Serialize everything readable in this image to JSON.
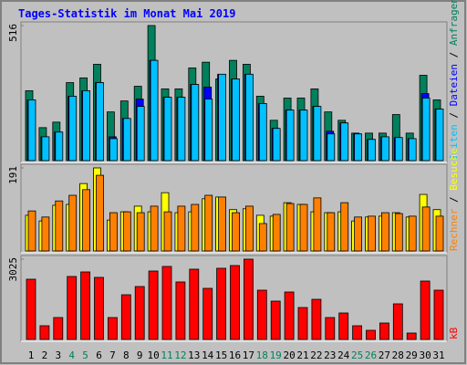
{
  "title": "Tages-Statistik im Monat Mai 2019",
  "legend_separator": "/",
  "chart_data": [
    {
      "type": "bar",
      "ylim": [
        0,
        516
      ],
      "yticks": [
        516
      ],
      "series": [
        {
          "name": "Anfragen",
          "color": "#00805c",
          "values": [
            267,
            126,
            147,
            298,
            316,
            368,
            186,
            228,
            284,
            516,
            274,
            274,
            354,
            376,
            312,
            383,
            368,
            246,
            154,
            239,
            239,
            274,
            186,
            154,
            105,
            105,
            105,
            176,
            105,
            326,
            232
          ]
        },
        {
          "name": "Dateien",
          "color": "#0000ff",
          "values": [
            232,
            91,
            109,
            246,
            267,
            298,
            91,
            161,
            235,
            383,
            242,
            242,
            291,
            281,
            330,
            312,
            330,
            218,
            123,
            193,
            193,
            207,
            112,
            144,
            102,
            81,
            91,
            88,
            84,
            256,
            197
          ]
        },
        {
          "name": "Seiten",
          "color": "#00c0ff",
          "values": [
            232,
            91,
            109,
            246,
            267,
            298,
            84,
            161,
            207,
            383,
            242,
            242,
            291,
            235,
            330,
            312,
            330,
            218,
            123,
            193,
            193,
            207,
            102,
            144,
            102,
            81,
            91,
            88,
            84,
            239,
            197
          ]
        }
      ]
    },
    {
      "type": "bar",
      "ylim": [
        0,
        191
      ],
      "yticks": [
        191
      ],
      "series": [
        {
          "name": "Besuche",
          "color": "#ffff00",
          "values": [
            82,
            69,
            105,
            107,
            155,
            191,
            71,
            90,
            103,
            90,
            134,
            88,
            90,
            120,
            124,
            95,
            97,
            82,
            80,
            111,
            107,
            90,
            88,
            90,
            69,
            78,
            80,
            88,
            78,
            130,
            95
          ]
        },
        {
          "name": "Rechner",
          "color": "#ff8000",
          "values": [
            92,
            78,
            115,
            128,
            141,
            174,
            88,
            90,
            88,
            103,
            90,
            103,
            107,
            128,
            124,
            88,
            103,
            63,
            84,
            109,
            107,
            122,
            88,
            111,
            78,
            80,
            88,
            86,
            80,
            101,
            80
          ]
        }
      ]
    },
    {
      "type": "bar",
      "ylim": [
        0,
        3025
      ],
      "yticks": [
        3025
      ],
      "categories": [
        "1",
        "2",
        "3",
        "4",
        "5",
        "6",
        "7",
        "8",
        "9",
        "10",
        "11",
        "12",
        "13",
        "14",
        "15",
        "16",
        "17",
        "18",
        "19",
        "20",
        "21",
        "22",
        "23",
        "24",
        "25",
        "26",
        "27",
        "28",
        "29",
        "30",
        "31"
      ],
      "highlight_categories": [
        3,
        4,
        10,
        11,
        17,
        18,
        24,
        25
      ],
      "category_color": "#000000",
      "highlight_color": "#00805c",
      "series": [
        {
          "name": "kB",
          "color": "#ff0000",
          "values": [
            2269,
            516,
            825,
            2372,
            2544,
            2338,
            825,
            1684,
            1994,
            2578,
            2750,
            2166,
            2647,
            1925,
            2681,
            2784,
            3025,
            1856,
            1444,
            1788,
            1203,
            1512,
            825,
            997,
            516,
            344,
            619,
            1341,
            241,
            2200,
            1856
          ]
        }
      ]
    }
  ]
}
